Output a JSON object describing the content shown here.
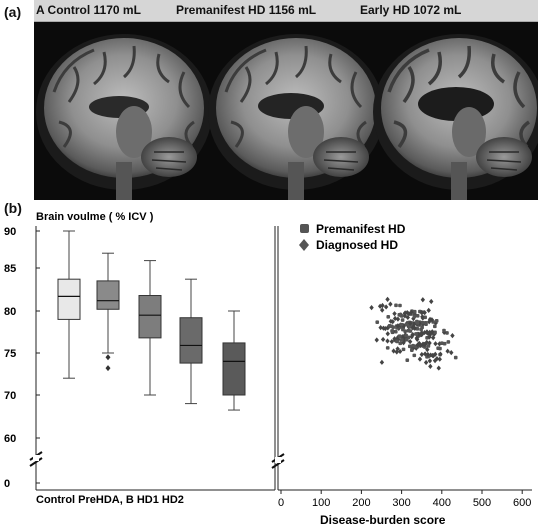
{
  "panel_a": {
    "label": "(a)",
    "titles": [
      "A Control 1170 mL",
      "Premanifest HD 1156 mL",
      "Early HD 1072 mL"
    ]
  },
  "panel_b": {
    "label": "(b)",
    "ylabel": "Brain voulme  ( % ICV )",
    "xlabel_left": "Control PreHDA, B HD1 HD2",
    "xlabel_right": "Disease-burden score",
    "legend": [
      "Premanifest HD",
      "Diagnosed HD"
    ]
  },
  "chart_data": [
    {
      "type": "box",
      "title": "",
      "ylabel": "Brain voulme  ( % ICV )",
      "xlabel": "Control PreHDA, B HD1 HD2",
      "yticks": [
        90,
        85,
        80,
        75,
        70,
        60,
        0
      ],
      "boxes": [
        {
          "whisker_low": 72,
          "q1": 79,
          "median": 81.7,
          "q3": 83.7,
          "whisker_high": 90,
          "outliers": [],
          "color": "#e8e8e8"
        },
        {
          "whisker_low": 75,
          "q1": 80.2,
          "median": 81.2,
          "q3": 83.5,
          "whisker_high": 87,
          "outliers": [
            74.5,
            73.2
          ],
          "color": "#8a8a8a"
        },
        {
          "whisker_low": 70,
          "q1": 76.8,
          "median": 79.5,
          "q3": 81.8,
          "whisker_high": 86,
          "outliers": [],
          "color": "#7d7d7d"
        },
        {
          "whisker_low": 68,
          "q1": 73.8,
          "median": 75.9,
          "q3": 79.2,
          "whisker_high": 83.7,
          "outliers": [],
          "color": "#6a6a6a"
        },
        {
          "whisker_low": 66.5,
          "q1": 70,
          "median": 74,
          "q3": 76.2,
          "whisker_high": 80,
          "outliers": [],
          "color": "#5a5a5a"
        }
      ]
    },
    {
      "type": "scatter",
      "title": "",
      "xlabel": "Disease-burden score",
      "ylabel": "",
      "xticks": [
        0,
        100,
        200,
        300,
        400,
        500,
        600
      ],
      "series": [
        {
          "name": "Premanifest HD",
          "marker": "circle"
        },
        {
          "name": "Diagnosed HD",
          "marker": "diamond"
        }
      ]
    }
  ]
}
